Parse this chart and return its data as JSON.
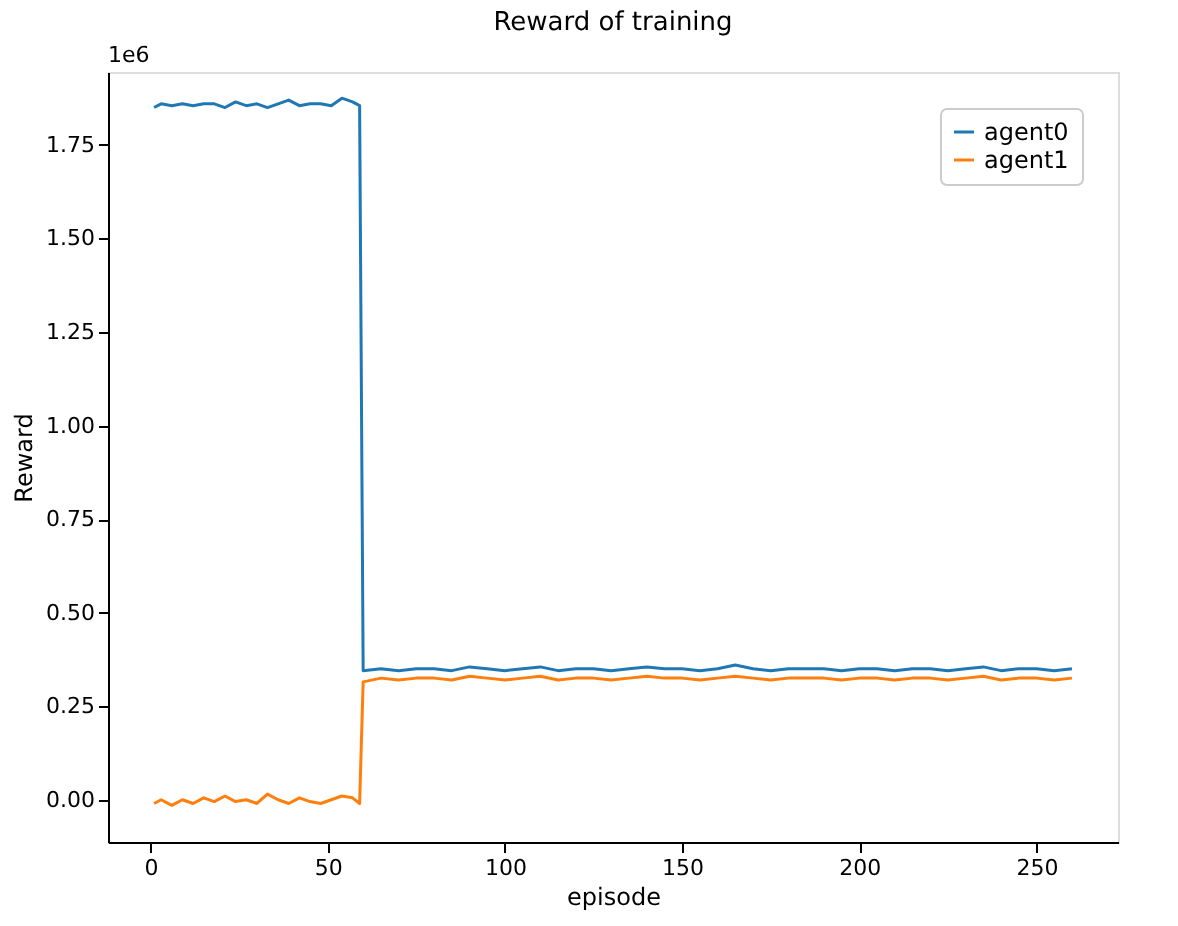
{
  "chart_data": {
    "type": "line",
    "title": "Reward of training",
    "xlabel": "episode",
    "ylabel": "Reward",
    "annotations": [
      "1e6"
    ],
    "x": [
      1,
      3,
      6,
      9,
      12,
      15,
      18,
      21,
      24,
      27,
      30,
      33,
      36,
      39,
      42,
      45,
      48,
      51,
      54,
      57,
      59,
      60,
      65,
      70,
      75,
      80,
      85,
      90,
      95,
      100,
      105,
      110,
      115,
      120,
      125,
      130,
      135,
      140,
      145,
      150,
      155,
      160,
      165,
      170,
      175,
      180,
      185,
      190,
      195,
      200,
      205,
      210,
      215,
      220,
      225,
      230,
      235,
      240,
      245,
      250,
      255,
      260
    ],
    "series": [
      {
        "name": "agent0",
        "color": "#1f77b4",
        "values": [
          1.85,
          1.86,
          1.855,
          1.86,
          1.855,
          1.86,
          1.86,
          1.85,
          1.865,
          1.855,
          1.86,
          1.85,
          1.86,
          1.87,
          1.855,
          1.86,
          1.86,
          1.855,
          1.875,
          1.865,
          1.855,
          0.345,
          0.35,
          0.345,
          0.35,
          0.35,
          0.345,
          0.355,
          0.35,
          0.345,
          0.35,
          0.355,
          0.345,
          0.35,
          0.35,
          0.345,
          0.35,
          0.355,
          0.35,
          0.35,
          0.345,
          0.35,
          0.36,
          0.35,
          0.345,
          0.35,
          0.35,
          0.35,
          0.345,
          0.35,
          0.35,
          0.345,
          0.35,
          0.35,
          0.345,
          0.35,
          0.355,
          0.345,
          0.35,
          0.35,
          0.345,
          0.35
        ]
      },
      {
        "name": "agent1",
        "color": "#ff7f0e",
        "values": [
          -0.01,
          0.0,
          -0.015,
          0.0,
          -0.01,
          0.005,
          -0.005,
          0.01,
          -0.005,
          0.0,
          -0.01,
          0.015,
          0.0,
          -0.01,
          0.005,
          -0.005,
          -0.01,
          0.0,
          0.01,
          0.005,
          -0.01,
          0.315,
          0.325,
          0.32,
          0.325,
          0.325,
          0.32,
          0.33,
          0.325,
          0.32,
          0.325,
          0.33,
          0.32,
          0.325,
          0.325,
          0.32,
          0.325,
          0.33,
          0.325,
          0.325,
          0.32,
          0.325,
          0.33,
          0.325,
          0.32,
          0.325,
          0.325,
          0.325,
          0.32,
          0.325,
          0.325,
          0.32,
          0.325,
          0.325,
          0.32,
          0.325,
          0.33,
          0.32,
          0.325,
          0.325,
          0.32,
          0.325
        ]
      }
    ],
    "xlim": [
      -12,
      273
    ],
    "xticks": [
      0,
      50,
      100,
      150,
      200,
      250
    ],
    "ylim": [
      -0.113,
      1.945
    ],
    "yticks": [
      {
        "value": 0,
        "label": "0.00"
      },
      {
        "value": 0.25,
        "label": "0.25"
      },
      {
        "value": 0.5,
        "label": "0.50"
      },
      {
        "value": 0.75,
        "label": "0.75"
      },
      {
        "value": 1,
        "label": "1.00"
      },
      {
        "value": 1.25,
        "label": "1.25"
      },
      {
        "value": 1.5,
        "label": "1.50"
      },
      {
        "value": 1.75,
        "label": "1.75"
      }
    ],
    "grid": false,
    "legend": "top right",
    "line_style": "solid",
    "marker": "none"
  }
}
